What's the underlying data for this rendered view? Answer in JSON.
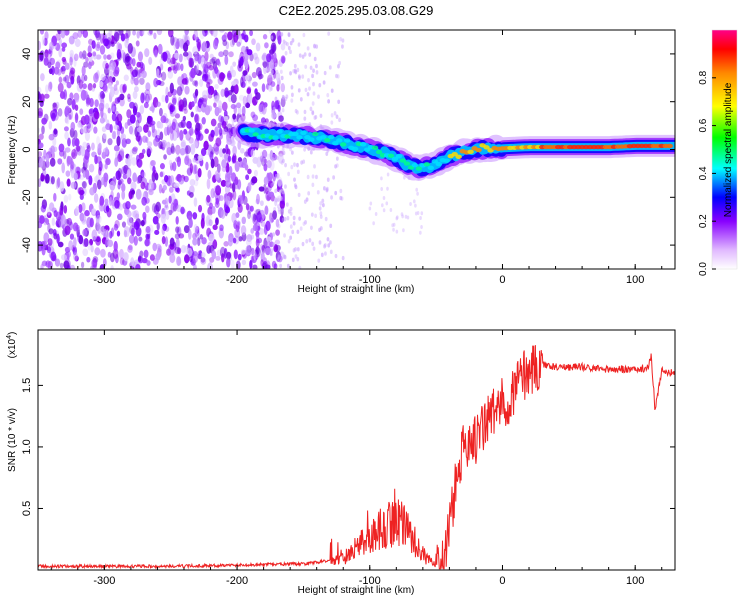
{
  "title": "C2E2.2025.295.03.08.G29",
  "chart_data": [
    {
      "type": "heatmap",
      "title": "C2E2.2025.295.03.08.G29",
      "xlabel": "Height of straight line (km)",
      "ylabel": "Frequency (Hz)",
      "xlim": [
        -350,
        130
      ],
      "ylim": [
        -50,
        50
      ],
      "xticks": [
        -300,
        -200,
        -100,
        0,
        100
      ],
      "yticks": [
        -40,
        -20,
        0,
        20,
        40
      ],
      "colorbar": {
        "label": "Normalized spectral amplitude",
        "range": [
          0,
          1
        ],
        "ticks": [
          "0.0",
          "0.2",
          "0.4",
          "0.6",
          "0.8"
        ]
      },
      "ridge": {
        "x": [
          -195,
          -180,
          -160,
          -140,
          -120,
          -100,
          -85,
          -70,
          -60,
          -50,
          -40,
          -30,
          -20,
          -10,
          0,
          20,
          40,
          60,
          80,
          100,
          120,
          130
        ],
        "y": [
          7,
          6,
          6,
          5,
          3,
          0,
          -2,
          -7,
          -8,
          -6,
          -3,
          -1,
          0,
          0.5,
          0.5,
          1,
          1,
          1,
          1,
          1.5,
          1.5,
          1.5
        ]
      },
      "noise_region": [
        -350,
        -175
      ]
    },
    {
      "type": "line",
      "xlabel": "Height of straight line (km)",
      "ylabel": "SNR (10 * v/v)",
      "multiplier": "(x10",
      "multiplier_exp": "4",
      "xlim": [
        -350,
        130
      ],
      "ylim": [
        0,
        1.95
      ],
      "xticks": [
        -300,
        -200,
        -100,
        0,
        100
      ],
      "yticks": [
        0.5,
        1.0,
        1.5
      ],
      "ytick_labels": [
        "0.5",
        "1.0",
        "1.5"
      ],
      "series": [
        {
          "name": "SNR",
          "color": "#ee2222",
          "x": [
            -350,
            -300,
            -250,
            -200,
            -150,
            -120,
            -110,
            -100,
            -90,
            -80,
            -70,
            -60,
            -50,
            -45,
            -40,
            -35,
            -30,
            -25,
            -20,
            -15,
            -10,
            -5,
            0,
            5,
            10,
            15,
            20,
            25,
            30,
            35,
            40,
            50,
            60,
            70,
            80,
            90,
            100,
            110,
            112,
            115,
            120,
            130
          ],
          "y": [
            0.03,
            0.03,
            0.03,
            0.04,
            0.05,
            0.09,
            0.18,
            0.27,
            0.35,
            0.4,
            0.3,
            0.12,
            0.04,
            0.08,
            0.35,
            0.7,
            0.95,
            1.1,
            1.05,
            1.15,
            1.25,
            1.3,
            1.35,
            1.4,
            1.5,
            1.58,
            1.62,
            1.65,
            1.67,
            1.66,
            1.65,
            1.65,
            1.65,
            1.64,
            1.63,
            1.63,
            1.63,
            1.64,
            1.75,
            1.3,
            1.62,
            1.6
          ]
        }
      ]
    }
  ]
}
